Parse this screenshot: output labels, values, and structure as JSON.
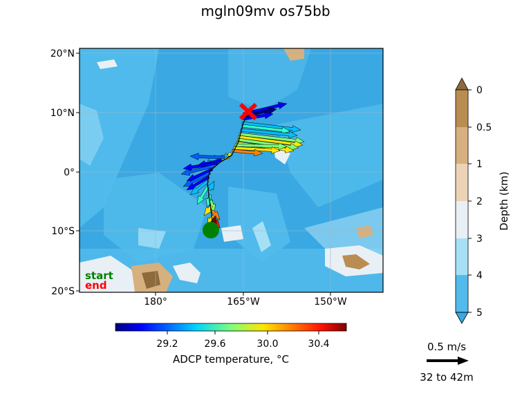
{
  "title": "mgln09mv os75bb",
  "map": {
    "lat_ticks": [
      "20°N",
      "10°N",
      "0°",
      "10°S",
      "20°S"
    ],
    "lon_ticks": [
      "180°",
      "165°W",
      "150°W"
    ],
    "start_label": "start",
    "end_label": "end",
    "start_color": "#008000",
    "end_color": "#ff0000"
  },
  "depth_bar": {
    "label": "Depth (km)",
    "ticks": [
      "0",
      "0.5",
      "1",
      "2",
      "3",
      "4",
      "5"
    ],
    "colors": [
      "#8c6a3c",
      "#b98d52",
      "#d6b07e",
      "#ecd3b6",
      "#e9f0f5",
      "#a6e0f6",
      "#52bbec",
      "#3aa8e2"
    ]
  },
  "temp_bar": {
    "label": "ADCP temperature, °C",
    "ticks": [
      "29.2",
      "29.6",
      "30.0",
      "30.4"
    ]
  },
  "scale": {
    "speed_label": "0.5 m/s",
    "depth_range": "32 to 42m"
  }
}
